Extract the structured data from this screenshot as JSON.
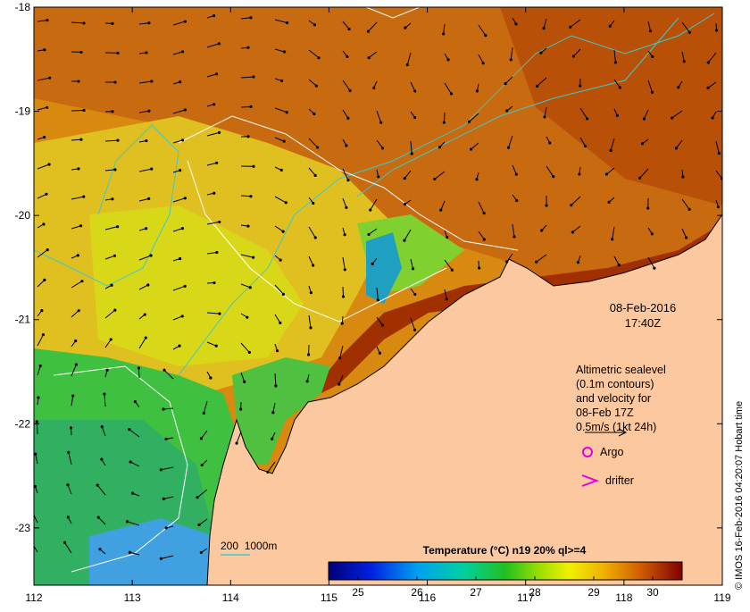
{
  "map": {
    "lon_ticks": [
      "112",
      "113",
      "114",
      "115",
      "116",
      "117",
      "118",
      "119"
    ],
    "lat_ticks": [
      "-18",
      "-19",
      "-20",
      "-21",
      "-22",
      "-23"
    ],
    "lon_range": [
      112,
      119
    ],
    "lat_range": [
      -23.55,
      -18
    ]
  },
  "timestamp": {
    "date": "08-Feb-2016",
    "time": "17:40Z"
  },
  "annotation": {
    "lines": [
      "Altimetric sealevel",
      "(0.1m contours)",
      "and velocity for",
      "08-Feb 17Z"
    ],
    "scale_label": "0.5m/s (1kt 24h)"
  },
  "legend": {
    "argo_label": "Argo",
    "drifter_label": "drifter",
    "isobath_label": "200  1000m",
    "argo_color": "#e000e0",
    "drifter_color": "#e000e0",
    "isobath_color": "#40c8c8"
  },
  "colorbar": {
    "title": "Temperature (°C) n19 20% ql>=4",
    "ticks": [
      "25",
      "26",
      "27",
      "28",
      "29",
      "30"
    ],
    "range": [
      24.5,
      30.5
    ]
  },
  "credit": "© IMOS 16-Feb-2016 04:20:07 Hobart time",
  "colors": {
    "land": "#fcc8a0",
    "warm": "#b04000",
    "mid": "#e8a000",
    "cool": "#20c040",
    "cold": "#2080e0"
  }
}
